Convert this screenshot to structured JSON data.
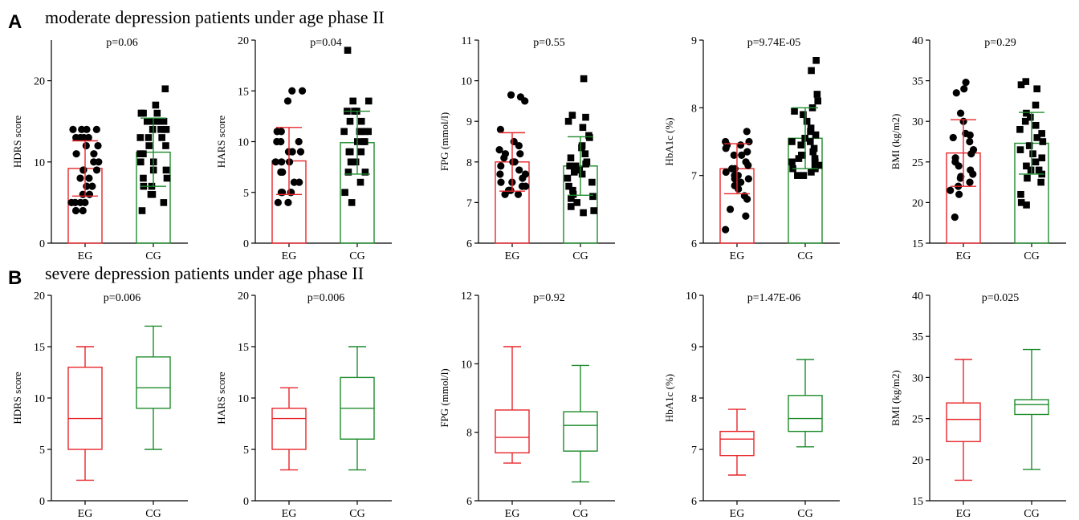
{
  "panels": [
    {
      "letter": "A",
      "title": "moderate depression patients under age phase II"
    },
    {
      "letter": "B",
      "title": "severe depression patients under age phase II"
    }
  ],
  "colors": {
    "EG": "#e8262b",
    "CG": "#1e8c2c",
    "points": "#000000",
    "axis": "#000000"
  },
  "chart_data": [
    {
      "type": "bar",
      "panel": "A",
      "ylabel": "HDRS score",
      "p": "p=0.06",
      "ylim": [
        0,
        25
      ],
      "yticks": [
        0,
        10,
        20
      ],
      "categories": [
        "EG",
        "CG"
      ],
      "series": [
        {
          "name": "EG",
          "mean": 9.2,
          "sd": 3.4,
          "points": [
            14,
            14,
            14,
            14,
            13,
            13,
            13,
            13,
            12,
            12,
            11,
            11,
            10,
            10,
            9,
            9,
            9,
            8,
            8,
            7,
            7,
            6,
            6,
            5,
            5,
            5,
            5,
            4,
            4
          ]
        },
        {
          "name": "CG",
          "mean": 11.2,
          "sd": 4.2,
          "points": [
            19,
            17,
            16,
            16,
            16,
            16,
            15,
            15,
            15,
            15,
            14,
            14,
            14,
            14,
            13,
            13,
            13,
            12,
            12,
            11,
            11,
            10,
            10,
            9,
            9,
            8,
            8,
            7,
            7,
            6,
            6,
            5,
            4
          ]
        }
      ]
    },
    {
      "type": "bar",
      "panel": "A",
      "ylabel": "HARS score",
      "p": "p=0.04",
      "ylim": [
        0,
        20
      ],
      "yticks": [
        0,
        5,
        10,
        15,
        20
      ],
      "categories": [
        "EG",
        "CG"
      ],
      "series": [
        {
          "name": "EG",
          "mean": 8.1,
          "sd": 3.3,
          "points": [
            15,
            15,
            14,
            11,
            11,
            10,
            10,
            10,
            9,
            9,
            9,
            8,
            8,
            8,
            7,
            7,
            6,
            6,
            5,
            5,
            5,
            5,
            4,
            4
          ]
        },
        {
          "name": "CG",
          "mean": 9.9,
          "sd": 3.1,
          "points": [
            19,
            14,
            14,
            13,
            13,
            13,
            12,
            12,
            11,
            11,
            11,
            11,
            11,
            10,
            10,
            10,
            9,
            9,
            9,
            8,
            8,
            8,
            7,
            7,
            6,
            5,
            4
          ]
        }
      ]
    },
    {
      "type": "bar",
      "panel": "A",
      "ylabel": "FPG (mmol/l)",
      "p": "p=0.55",
      "ylim": [
        6,
        11
      ],
      "yticks": [
        6,
        7,
        8,
        9,
        10,
        11
      ],
      "categories": [
        "EG",
        "CG"
      ],
      "series": [
        {
          "name": "EG",
          "mean": 8.0,
          "sd": 0.72,
          "points": [
            9.65,
            9.6,
            9.5,
            8.8,
            8.5,
            8.4,
            8.3,
            8.2,
            8.2,
            8.1,
            8.0,
            8.0,
            7.9,
            7.8,
            7.7,
            7.7,
            7.6,
            7.5,
            7.5,
            7.4,
            7.4,
            7.3,
            7.3,
            7.2,
            7.2
          ]
        },
        {
          "name": "CG",
          "mean": 7.9,
          "sd": 0.72,
          "points": [
            10.05,
            9.15,
            9.1,
            9.0,
            8.85,
            8.65,
            8.6,
            8.4,
            8.35,
            8.2,
            8.1,
            8.0,
            7.95,
            7.9,
            7.9,
            7.8,
            7.75,
            7.7,
            7.6,
            7.5,
            7.4,
            7.3,
            7.2,
            7.15,
            7.1,
            7.0,
            6.9,
            6.8,
            6.75
          ]
        }
      ]
    },
    {
      "type": "bar",
      "panel": "A",
      "ylabel": "HbA1c (%)",
      "p": "p=9.74E-05",
      "ylim": [
        6,
        9
      ],
      "yticks": [
        6,
        7,
        8,
        9
      ],
      "categories": [
        "EG",
        "CG"
      ],
      "series": [
        {
          "name": "EG",
          "mean": 7.1,
          "sd": 0.37,
          "points": [
            7.65,
            7.5,
            7.5,
            7.45,
            7.45,
            7.4,
            7.35,
            7.3,
            7.3,
            7.2,
            7.15,
            7.1,
            7.1,
            7.05,
            7.0,
            7.0,
            6.95,
            6.95,
            6.9,
            6.85,
            6.8,
            6.7,
            6.65,
            6.5,
            6.4,
            6.2
          ]
        },
        {
          "name": "CG",
          "mean": 7.55,
          "sd": 0.45,
          "points": [
            8.7,
            8.55,
            8.2,
            8.1,
            8.0,
            7.95,
            7.9,
            7.8,
            7.7,
            7.65,
            7.6,
            7.55,
            7.5,
            7.5,
            7.45,
            7.4,
            7.35,
            7.3,
            7.3,
            7.25,
            7.25,
            7.2,
            7.2,
            7.15,
            7.15,
            7.1,
            7.1,
            7.05,
            7.0,
            7.0
          ]
        }
      ]
    },
    {
      "type": "bar",
      "panel": "A",
      "ylabel": "BMI (kg/m2)",
      "p": "p=0.29",
      "ylim": [
        15,
        40
      ],
      "yticks": [
        15,
        20,
        25,
        30,
        35,
        40
      ],
      "categories": [
        "EG",
        "CG"
      ],
      "series": [
        {
          "name": "EG",
          "mean": 26.1,
          "sd": 4.1,
          "points": [
            34.8,
            34,
            33.5,
            31,
            30,
            28.5,
            28.3,
            28,
            27.5,
            26.5,
            26,
            25.5,
            25,
            24.5,
            24,
            23.5,
            23.2,
            23,
            22.5,
            22,
            21.5,
            21,
            18.2
          ]
        },
        {
          "name": "CG",
          "mean": 27.3,
          "sd": 3.8,
          "points": [
            34.9,
            34.5,
            34,
            32,
            31,
            30.5,
            30,
            29.5,
            29,
            28.5,
            28,
            27.5,
            27,
            26.5,
            26,
            25.5,
            25,
            24.5,
            24,
            24,
            23.5,
            23,
            22.5,
            21,
            20,
            19.7
          ]
        }
      ]
    },
    {
      "type": "box",
      "panel": "B",
      "ylabel": "HDRS score",
      "p": "p=0.006",
      "ylim": [
        0,
        20
      ],
      "yticks": [
        0,
        5,
        10,
        15,
        20
      ],
      "categories": [
        "EG",
        "CG"
      ],
      "series": [
        {
          "name": "EG",
          "min": 2,
          "q1": 5,
          "median": 8,
          "q3": 13,
          "max": 15
        },
        {
          "name": "CG",
          "min": 5,
          "q1": 9,
          "median": 11,
          "q3": 14,
          "max": 17
        }
      ]
    },
    {
      "type": "box",
      "panel": "B",
      "ylabel": "HARS score",
      "p": "p=0.006",
      "ylim": [
        0,
        20
      ],
      "yticks": [
        0,
        5,
        10,
        15,
        20
      ],
      "categories": [
        "EG",
        "CG"
      ],
      "series": [
        {
          "name": "EG",
          "min": 3,
          "q1": 5,
          "median": 8,
          "q3": 9,
          "max": 11
        },
        {
          "name": "CG",
          "min": 3,
          "q1": 6,
          "median": 9,
          "q3": 12,
          "max": 15
        }
      ]
    },
    {
      "type": "box",
      "panel": "B",
      "ylabel": "FPG (mmol/l)",
      "p": "p=0.92",
      "ylim": [
        6,
        12
      ],
      "yticks": [
        6,
        8,
        10,
        12
      ],
      "categories": [
        "EG",
        "CG"
      ],
      "series": [
        {
          "name": "EG",
          "min": 7.1,
          "q1": 7.4,
          "median": 7.85,
          "q3": 8.65,
          "max": 10.5
        },
        {
          "name": "CG",
          "min": 6.55,
          "q1": 7.45,
          "median": 8.2,
          "q3": 8.6,
          "max": 9.95
        }
      ]
    },
    {
      "type": "box",
      "panel": "B",
      "ylabel": "HbA1c (%)",
      "p": "p=1.47E-06",
      "ylim": [
        6,
        10
      ],
      "yticks": [
        6,
        7,
        8,
        9,
        10
      ],
      "categories": [
        "EG",
        "CG"
      ],
      "series": [
        {
          "name": "EG",
          "min": 6.5,
          "q1": 6.88,
          "median": 7.2,
          "q3": 7.35,
          "max": 7.78
        },
        {
          "name": "CG",
          "min": 7.05,
          "q1": 7.35,
          "median": 7.6,
          "q3": 8.05,
          "max": 8.75
        }
      ]
    },
    {
      "type": "box",
      "panel": "B",
      "ylabel": "BMI (kg/m2)",
      "p": "p=0.025",
      "ylim": [
        15,
        40
      ],
      "yticks": [
        15,
        20,
        25,
        30,
        35,
        40
      ],
      "categories": [
        "EG",
        "CG"
      ],
      "series": [
        {
          "name": "EG",
          "min": 17.5,
          "q1": 22.2,
          "median": 24.9,
          "q3": 26.9,
          "max": 32.2
        },
        {
          "name": "CG",
          "min": 18.8,
          "q1": 25.5,
          "median": 26.7,
          "q3": 27.3,
          "max": 33.4
        }
      ]
    }
  ]
}
